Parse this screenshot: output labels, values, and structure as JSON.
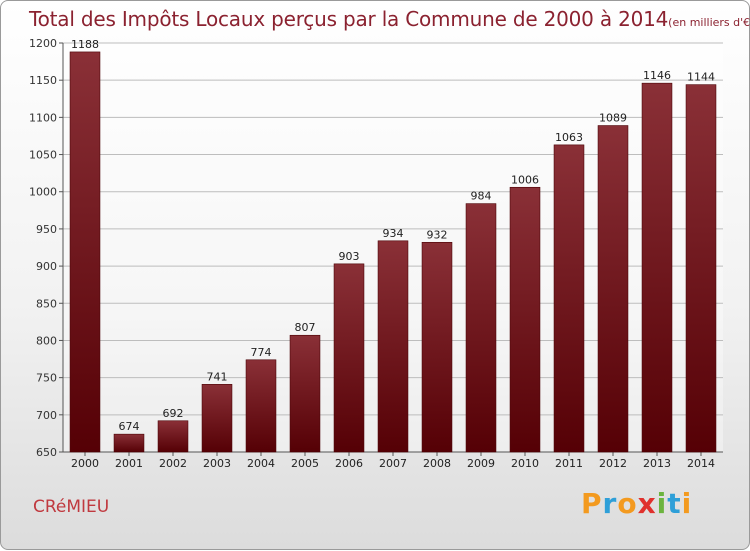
{
  "title": "Total des Impôts Locaux perçus par la Commune de 2000 à 2014",
  "unit_note": "(en milliers d'€)",
  "commune": "CRéMIEU",
  "brand": {
    "letters": [
      "P",
      "r",
      "o",
      "x",
      "i",
      "t",
      "i"
    ],
    "colors": [
      "#f39a1f",
      "#2e9fd8",
      "#f39a1f",
      "#e0312d",
      "#6cb43f",
      "#2e9fd8",
      "#f39a1f"
    ]
  },
  "colors": {
    "bar_top": "#8a3037",
    "bar_bottom": "#550005",
    "title": "#8b2230"
  },
  "chart_data": {
    "type": "bar",
    "categories": [
      "2000",
      "2001",
      "2002",
      "2003",
      "2004",
      "2005",
      "2006",
      "2007",
      "2008",
      "2009",
      "2010",
      "2011",
      "2012",
      "2013",
      "2014"
    ],
    "values": [
      1188,
      674,
      692,
      741,
      774,
      807,
      903,
      934,
      932,
      984,
      1006,
      1063,
      1089,
      1146,
      1144
    ],
    "ylim": [
      650,
      1200
    ],
    "yticks": [
      650,
      700,
      750,
      800,
      850,
      900,
      950,
      1000,
      1050,
      1100,
      1150,
      1200
    ],
    "grid": true
  }
}
